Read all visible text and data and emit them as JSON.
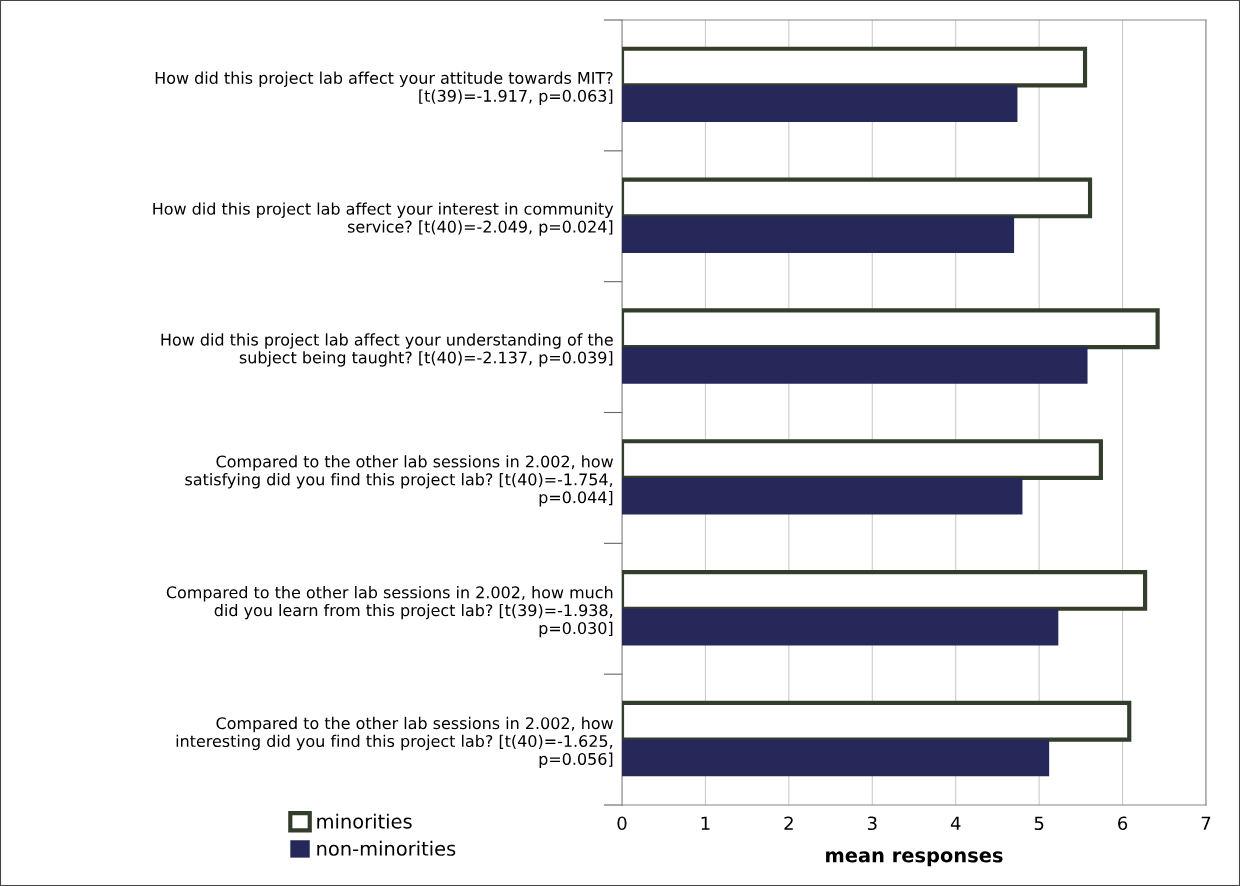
{
  "chart_data": {
    "type": "bar",
    "orientation": "horizontal",
    "xlabel": "mean responses",
    "categories": [
      "How did this project lab affect your attitude towards MIT?\n[t(39)=-1.917, p=0.063]",
      "How did this project lab affect your interest in community\nservice? [t(40)=-2.049, p=0.024]",
      "How did this project lab affect your understanding of the\nsubject being taught? [t(40)=-2.137, p=0.039]",
      "Compared to the other lab sessions in 2.002, how\nsatisfying did you find this project lab? [t(40)=-1.754,\np=0.044]",
      "Compared to the other lab sessions in 2.002, how much\ndid you learn from this project lab? [t(39)=-1.938,\np=0.030]",
      "Compared to the other lab sessions in 2.002, how\ninteresting did you find this project lab? [t(40)=-1.625,\np=0.056]"
    ],
    "series": [
      {
        "name": "minorities",
        "color": "#ffffff",
        "values": [
          5.55,
          5.61,
          6.42,
          5.74,
          6.27,
          6.08
        ]
      },
      {
        "name": "non-minorities",
        "color": "#26285a",
        "values": [
          4.74,
          4.7,
          5.58,
          4.8,
          5.23,
          5.12
        ]
      }
    ],
    "xlim": [
      0,
      7
    ],
    "xticks": [
      0,
      1,
      2,
      3,
      4,
      5,
      6,
      7
    ],
    "grid": "x",
    "legend": "bottom left"
  }
}
